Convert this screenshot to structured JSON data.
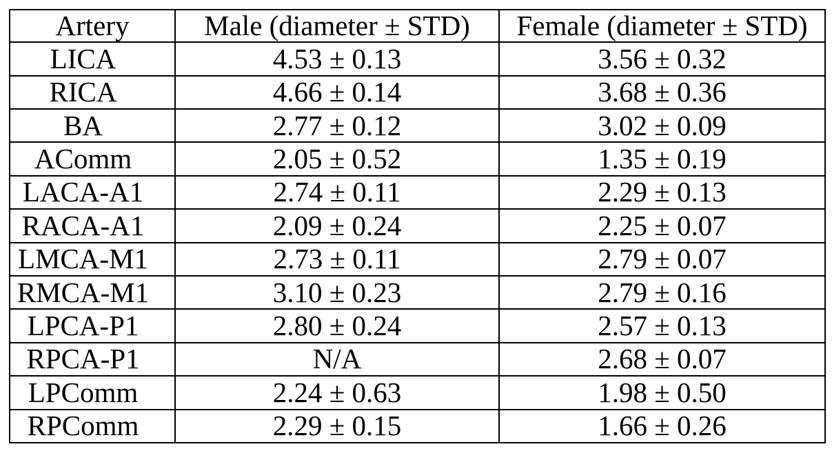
{
  "table": {
    "title": "artery-diameter-table",
    "columns": [
      "Artery",
      "Male (diameter ± STD)",
      "Female (diameter ± STD)"
    ],
    "rows": [
      [
        "LICA",
        "4.53 ± 0.13",
        "3.56 ± 0.32"
      ],
      [
        "RICA",
        "4.66 ± 0.14",
        "3.68 ± 0.36"
      ],
      [
        "BA",
        "2.77 ± 0.12",
        "3.02 ± 0.09"
      ],
      [
        "AComm",
        "2.05 ± 0.52",
        "1.35 ± 0.19"
      ],
      [
        "LACA-A1",
        "2.74 ± 0.11",
        "2.29 ± 0.13"
      ],
      [
        "RACA-A1",
        "2.09 ± 0.24",
        "2.25 ± 0.07"
      ],
      [
        "LMCA-M1",
        "2.73 ± 0.11",
        "2.79 ± 0.07"
      ],
      [
        "RMCA-M1",
        "3.10 ± 0.23",
        "2.79 ± 0.16"
      ],
      [
        "LPCA-P1",
        "2.80 ± 0.24",
        "2.57 ± 0.13"
      ],
      [
        "RPCA-P1",
        "N/A",
        "2.68 ± 0.07"
      ],
      [
        "LPComm",
        "2.24 ± 0.63",
        "1.98 ± 0.50"
      ],
      [
        "RPComm",
        "2.29 ± 0.15",
        "1.66 ± 0.26"
      ]
    ],
    "na_value": "N/A"
  },
  "colors": {
    "background": "#ffffff",
    "border": "#000000",
    "text": "#000000"
  },
  "chart_data": {
    "type": "table",
    "title": "Artery diameter ± STD by sex",
    "categories": [
      "LICA",
      "RICA",
      "BA",
      "AComm",
      "LACA-A1",
      "RACA-A1",
      "LMCA-M1",
      "RMCA-M1",
      "LPCA-P1",
      "RPCA-P1",
      "LPComm",
      "RPComm"
    ],
    "series": [
      {
        "name": "Male diameter",
        "values": [
          4.53,
          4.66,
          2.77,
          2.05,
          2.74,
          2.09,
          2.73,
          3.1,
          2.8,
          null,
          2.24,
          2.29
        ]
      },
      {
        "name": "Male STD",
        "values": [
          0.13,
          0.14,
          0.12,
          0.52,
          0.11,
          0.24,
          0.11,
          0.23,
          0.24,
          null,
          0.63,
          0.15
        ]
      },
      {
        "name": "Female diameter",
        "values": [
          3.56,
          3.68,
          3.02,
          1.35,
          2.29,
          2.25,
          2.79,
          2.79,
          2.57,
          2.68,
          1.98,
          1.66
        ]
      },
      {
        "name": "Female STD",
        "values": [
          0.32,
          0.36,
          0.09,
          0.19,
          0.13,
          0.07,
          0.07,
          0.16,
          0.13,
          0.07,
          0.5,
          0.26
        ]
      }
    ]
  }
}
